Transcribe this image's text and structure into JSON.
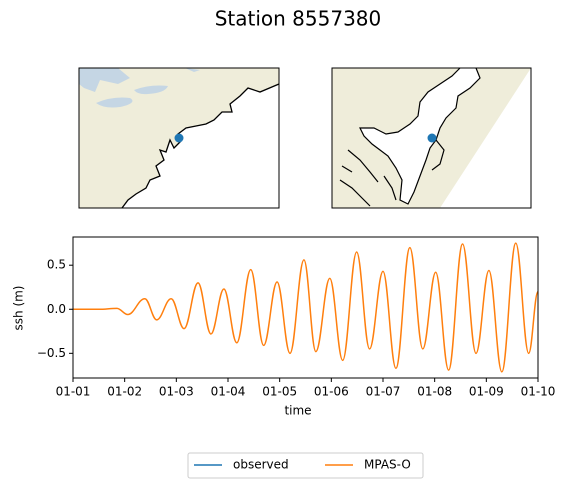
{
  "chart_data": {
    "type": "line",
    "title": "Station 8557380",
    "xlabel": "time",
    "ylabel": "ssh (m)",
    "x": [
      0,
      0.5,
      0.85,
      1.06,
      1.39,
      1.62,
      1.9,
      2.15,
      2.42,
      2.67,
      2.92,
      3.17,
      3.44,
      3.69,
      3.95,
      4.2,
      4.47,
      4.7,
      4.97,
      5.22,
      5.49,
      5.74,
      6.0,
      6.25,
      6.52,
      6.77,
      7.02,
      7.27,
      7.54,
      7.8,
      8.05,
      8.3,
      8.57,
      8.82,
      9.0
    ],
    "series": [
      {
        "name": "observed",
        "color": "#1f77b4",
        "values": [
          null,
          null,
          null,
          null,
          null,
          null,
          null,
          null,
          null,
          null,
          null,
          null,
          null,
          null,
          null,
          null,
          null,
          null,
          null,
          null,
          null,
          null,
          null,
          null,
          null,
          null,
          null,
          null,
          null,
          null,
          null,
          null,
          null,
          null,
          null
        ]
      },
      {
        "name": "MPAS-O",
        "color": "#ff7f0e",
        "values": [
          0,
          0,
          0.01,
          -0.06,
          0.12,
          -0.12,
          0.12,
          -0.22,
          0.3,
          -0.28,
          0.23,
          -0.38,
          0.45,
          -0.41,
          0.31,
          -0.5,
          0.56,
          -0.48,
          0.35,
          -0.58,
          0.65,
          -0.45,
          0.43,
          -0.67,
          0.7,
          -0.45,
          0.42,
          -0.69,
          0.74,
          -0.5,
          0.44,
          -0.71,
          0.75,
          -0.5,
          0.2
        ]
      }
    ],
    "xlim": [
      0,
      9
    ],
    "xticks": [
      {
        "value": 0,
        "label": "01-01"
      },
      {
        "value": 1,
        "label": "01-02"
      },
      {
        "value": 2,
        "label": "01-03"
      },
      {
        "value": 3,
        "label": "01-04"
      },
      {
        "value": 4,
        "label": "01-05"
      },
      {
        "value": 5,
        "label": "01-06"
      },
      {
        "value": 6,
        "label": "01-07"
      },
      {
        "value": 7,
        "label": "01-08"
      },
      {
        "value": 8,
        "label": "01-09"
      },
      {
        "value": 9,
        "label": "01-10"
      }
    ],
    "ylim": [
      -0.78,
      0.82
    ],
    "yticks": [
      {
        "value": -0.5,
        "label": "−0.5"
      },
      {
        "value": 0,
        "label": "0.0"
      },
      {
        "value": 0.5,
        "label": "0.5"
      }
    ],
    "legend": "lower center"
  }
}
